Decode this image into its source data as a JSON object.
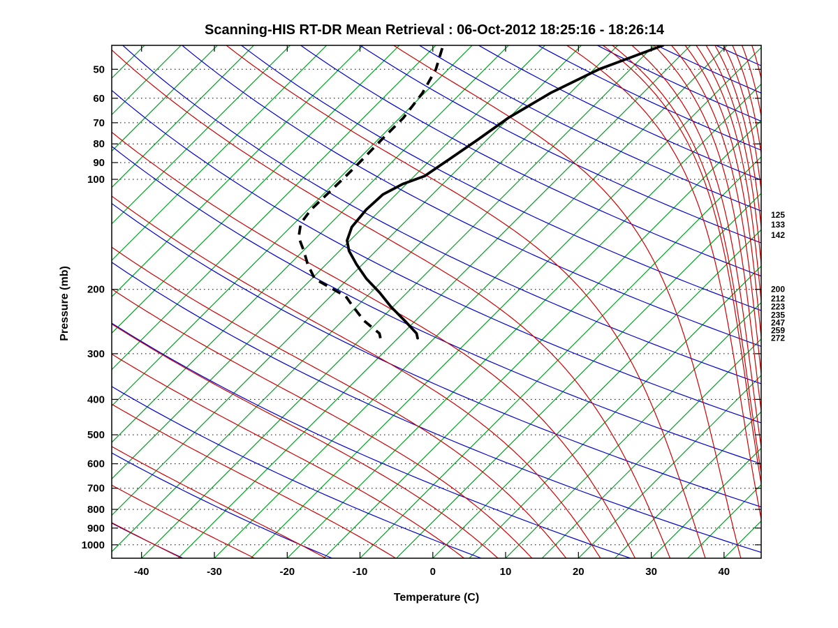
{
  "title": "Scanning-HIS RT-DR Mean Retrieval : 06-Oct-2012 18:25:16 - 18:26:14",
  "chart_data": {
    "type": "line",
    "variant": "skew-t-log-p",
    "xlabel": "Temperature (C)",
    "ylabel": "Pressure (mb)",
    "x_ticks": [
      -40,
      -30,
      -20,
      -10,
      0,
      10,
      20,
      30,
      40
    ],
    "pressure_ticks": [
      50,
      60,
      70,
      80,
      90,
      100,
      200,
      300,
      400,
      500,
      600,
      700,
      800,
      900,
      1000
    ],
    "pressure_gridlines": [
      50,
      60,
      70,
      80,
      90,
      100,
      200,
      300,
      400,
      500,
      600,
      700,
      800,
      900,
      1000
    ],
    "xlim": [
      -44.1,
      45.1
    ],
    "pressure_lim": [
      43,
      1088
    ],
    "skew_c_per_decade": 50.18,
    "grid": true,
    "frame_color": "#000000",
    "background": "#ffffff",
    "right_level_labels": [
      125,
      133,
      142,
      200,
      212,
      223,
      235,
      247,
      259,
      272
    ],
    "isotherms": {
      "color": "#00A020",
      "min": -110,
      "max": 45,
      "step": 5
    },
    "dry_adiabats": {
      "color": "#0000CC",
      "theta_min": -40,
      "theta_max": 340,
      "step": 20
    },
    "moist_adiabats": {
      "color": "#CC0000",
      "thetaw_list": [
        -40,
        -30,
        -20,
        -10,
        0,
        5,
        10,
        15,
        20,
        25,
        30,
        35,
        40,
        45
      ],
      "edge_start_pressures": [
        850,
        680,
        540,
        430,
        340,
        270,
        215,
        170,
        135,
        107,
        85,
        67,
        53
      ]
    },
    "profiles": {
      "temperature": {
        "label": "temperature",
        "style": "solid",
        "color": "#000000",
        "points": [
          [
            272,
            -32.3
          ],
          [
            264,
            -33.1
          ],
          [
            244,
            -36.4
          ],
          [
            223,
            -40.3
          ],
          [
            204,
            -43.8
          ],
          [
            187,
            -47.5
          ],
          [
            171,
            -50.8
          ],
          [
            157,
            -53.7
          ],
          [
            147,
            -55.4
          ],
          [
            135,
            -56.6
          ],
          [
            121,
            -57.0
          ],
          [
            110,
            -56.8
          ],
          [
            103,
            -55.5
          ],
          [
            98,
            -53.6
          ],
          [
            88,
            -52.5
          ],
          [
            78,
            -51.3
          ],
          [
            68,
            -50.1
          ],
          [
            58,
            -47.7
          ],
          [
            50,
            -44.3
          ],
          [
            43,
            -38.8
          ]
        ]
      },
      "dewpoint": {
        "label": "dewpoint",
        "style": "dashed",
        "color": "#000000",
        "points": [
          [
            272,
            -37.4
          ],
          [
            264,
            -38.2
          ],
          [
            244,
            -42.0
          ],
          [
            223,
            -45.5
          ],
          [
            209,
            -47.9
          ],
          [
            196,
            -51.8
          ],
          [
            187,
            -54.6
          ],
          [
            171,
            -57.5
          ],
          [
            157,
            -59.9
          ],
          [
            144,
            -62.5
          ],
          [
            132,
            -64.1
          ],
          [
            121,
            -64.6
          ],
          [
            110,
            -64.5
          ],
          [
            98,
            -64.4
          ],
          [
            88,
            -64.4
          ],
          [
            78,
            -64.5
          ],
          [
            68,
            -64.5
          ],
          [
            58,
            -65.3
          ],
          [
            50,
            -66.7
          ],
          [
            43,
            -69.0
          ]
        ]
      }
    }
  }
}
